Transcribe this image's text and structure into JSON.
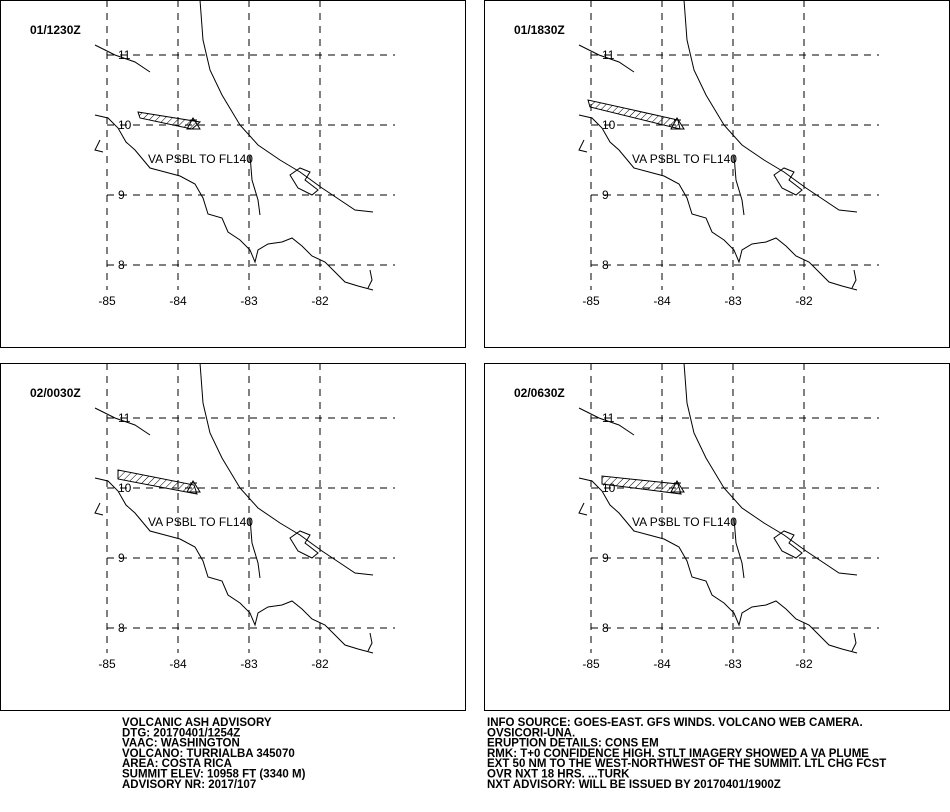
{
  "panels": [
    {
      "time": "01/1230Z",
      "note": "VA PSBL TO FL140"
    },
    {
      "time": "01/1830Z",
      "note": "VA PSBL TO FL140"
    },
    {
      "time": "02/0030Z",
      "note": "VA PSBL TO FL140"
    },
    {
      "time": "02/0630Z",
      "note": "VA PSBL TO FL140"
    }
  ],
  "latitudes": [
    "11",
    "10",
    "9",
    "8"
  ],
  "longitudes": [
    "-85",
    "-84",
    "-83",
    "-82"
  ],
  "advisory_left": [
    "VOLCANIC ASH ADVISORY",
    "DTG: 20170401/1254Z",
    "VAAC: WASHINGTON",
    "VOLCANO: TURRIALBA 345070",
    "AREA: COSTA RICA",
    "SUMMIT ELEV: 10958 FT (3340 M)",
    "ADVISORY NR: 2017/107"
  ],
  "advisory_right": [
    "INFO SOURCE: GOES-EAST. GFS WINDS. VOLCANO WEB CAMERA.",
    "OVSICORI-UNA.",
    "ERUPTION DETAILS: CONS EM",
    "RMK: T+0 CONFIDENCE HIGH. STLT IMAGERY SHOWED A VA PLUME",
    "EXT 50 NM TO THE WEST-NORTHWEST OF THE SUMMIT. LTL CHG FCST",
    "OVR NXT 18 HRS. ...TURK",
    "NXT ADVISORY: WILL BE ISSUED BY 20170401/1900Z"
  ]
}
